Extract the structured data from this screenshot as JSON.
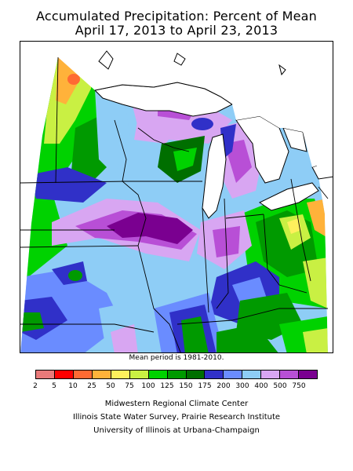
{
  "title": {
    "line1": "Accumulated Precipitation: Percent of Mean",
    "line2": "April 17, 2013 to April 23, 2013"
  },
  "mean_note": "Mean period is 1981-2010.",
  "legend": {
    "breaks": [
      "2",
      "5",
      "10",
      "25",
      "50",
      "75",
      "100",
      "125",
      "150",
      "175",
      "200",
      "300",
      "400",
      "500",
      "750"
    ],
    "colors": [
      "#e97a7a",
      "#ff0000",
      "#ff6a33",
      "#ffb23a",
      "#fff05c",
      "#c9f043",
      "#00d200",
      "#009a00",
      "#006f00",
      "#3030c8",
      "#6a8cff",
      "#8ecdf6",
      "#d8a6f2",
      "#b84fd6",
      "#7a0090"
    ]
  },
  "credits": {
    "line1": "Midwestern Regional Climate Center",
    "line2": "Illinois State Water Survey, Prairie Research Institute",
    "line3": "University of Illinois at Urbana-Champaign"
  }
}
